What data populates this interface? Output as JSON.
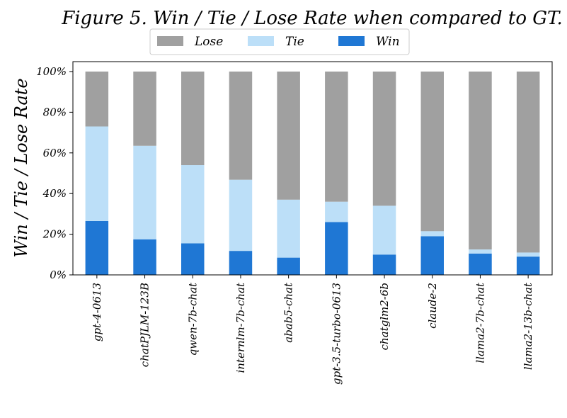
{
  "chart_data": {
    "type": "bar",
    "stacked": true,
    "title": "Figure 5. Win / Tie / Lose Rate when compared to GT.",
    "xlabel": "",
    "ylabel": "Win / Tie / Lose Rate",
    "ylim": [
      0,
      100
    ],
    "yticks": [
      "0%",
      "20%",
      "40%",
      "60%",
      "80%",
      "100%"
    ],
    "categories": [
      "gpt-4-0613",
      "chatPJLM-123B",
      "qwen-7b-chat",
      "internlm-7b-chat",
      "abab5-chat",
      "gpt-3.5-turbo-0613",
      "chatglm2-6b",
      "claude-2",
      "llama2-7b-chat",
      "llama2-13b-chat"
    ],
    "series": [
      {
        "name": "Win",
        "color": "#1f77d4",
        "values": [
          26.5,
          17.5,
          15.5,
          11.8,
          8.5,
          26.0,
          10.0,
          19.0,
          10.5,
          9.0
        ]
      },
      {
        "name": "Tie",
        "color": "#bcdff8",
        "values": [
          46.5,
          46.0,
          38.5,
          35.0,
          28.5,
          10.0,
          24.0,
          2.5,
          2.0,
          2.0
        ]
      },
      {
        "name": "Lose",
        "color": "#a0a0a0",
        "values": [
          27.0,
          36.5,
          46.0,
          53.2,
          63.0,
          64.0,
          66.0,
          78.5,
          87.5,
          89.0
        ]
      }
    ],
    "legend": {
      "placement": "top-center",
      "order": [
        "Lose",
        "Tie",
        "Win"
      ]
    },
    "grid": false
  }
}
